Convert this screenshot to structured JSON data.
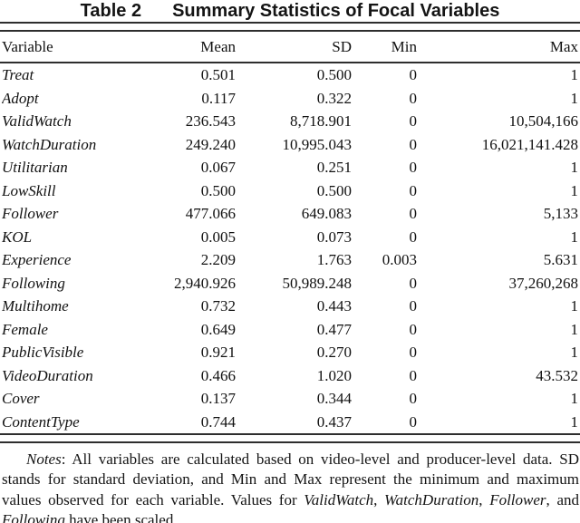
{
  "title": {
    "label": "Table 2",
    "caption": "Summary Statistics of Focal Variables"
  },
  "table": {
    "columns": [
      "Variable",
      "Mean",
      "SD",
      "Min",
      "Max"
    ],
    "rows": [
      {
        "name": "Treat",
        "mean": "0.501",
        "sd": "0.500",
        "min": "0",
        "max": "1"
      },
      {
        "name": "Adopt",
        "mean": "0.117",
        "sd": "0.322",
        "min": "0",
        "max": "1"
      },
      {
        "name": "ValidWatch",
        "mean": "236.543",
        "sd": "8,718.901",
        "min": "0",
        "max": "10,504,166"
      },
      {
        "name": "WatchDuration",
        "mean": "249.240",
        "sd": "10,995.043",
        "min": "0",
        "max": "16,021,141.428"
      },
      {
        "name": "Utilitarian",
        "mean": "0.067",
        "sd": "0.251",
        "min": "0",
        "max": "1"
      },
      {
        "name": "LowSkill",
        "mean": "0.500",
        "sd": "0.500",
        "min": "0",
        "max": "1"
      },
      {
        "name": "Follower",
        "mean": "477.066",
        "sd": "649.083",
        "min": "0",
        "max": "5,133"
      },
      {
        "name": "KOL",
        "mean": "0.005",
        "sd": "0.073",
        "min": "0",
        "max": "1"
      },
      {
        "name": "Experience",
        "mean": "2.209",
        "sd": "1.763",
        "min": "0.003",
        "max": "5.631"
      },
      {
        "name": "Following",
        "mean": "2,940.926",
        "sd": "50,989.248",
        "min": "0",
        "max": "37,260,268"
      },
      {
        "name": "Multihome",
        "mean": "0.732",
        "sd": "0.443",
        "min": "0",
        "max": "1"
      },
      {
        "name": "Female",
        "mean": "0.649",
        "sd": "0.477",
        "min": "0",
        "max": "1"
      },
      {
        "name": "PublicVisible",
        "mean": "0.921",
        "sd": "0.270",
        "min": "0",
        "max": "1"
      },
      {
        "name": "VideoDuration",
        "mean": "0.466",
        "sd": "1.020",
        "min": "0",
        "max": "43.532"
      },
      {
        "name": "Cover",
        "mean": "0.137",
        "sd": "0.344",
        "min": "0",
        "max": "1"
      },
      {
        "name": "ContentType",
        "mean": "0.744",
        "sd": "0.437",
        "min": "0",
        "max": "1"
      }
    ]
  },
  "notes": {
    "segments": [
      {
        "t": "Notes",
        "i": true
      },
      {
        "t": ": All variables are calculated based on video-level and producer-level data. SD stands for standard deviation, and Min and Max represent the minimum and maximum values observed for each variable. Values for ",
        "i": false
      },
      {
        "t": "ValidWatch",
        "i": true
      },
      {
        "t": ", ",
        "i": false
      },
      {
        "t": "WatchDuration",
        "i": true
      },
      {
        "t": ", ",
        "i": false
      },
      {
        "t": "Follower",
        "i": true
      },
      {
        "t": ", and ",
        "i": false
      },
      {
        "t": "Following",
        "i": true
      },
      {
        "t": " have been scaled.",
        "i": false
      }
    ]
  }
}
